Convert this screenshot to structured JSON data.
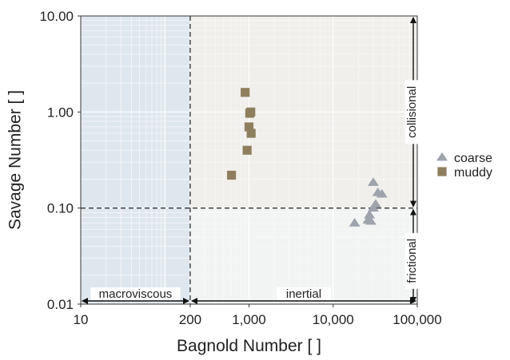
{
  "chart_data": {
    "type": "scatter",
    "xlabel": "Bagnold Number [ ]",
    "ylabel": "Savage Number [ ]",
    "x_scale": "log",
    "y_scale": "log",
    "xlim": [
      10,
      100000
    ],
    "ylim": [
      0.01,
      10
    ],
    "x_ticks": [
      {
        "value": 10,
        "label": "10"
      },
      {
        "value": 200,
        "label": "200"
      },
      {
        "value": 1000,
        "label": "1,000"
      },
      {
        "value": 10000,
        "label": "10,000"
      },
      {
        "value": 100000,
        "label": "100,000"
      }
    ],
    "y_ticks": [
      {
        "value": 0.01,
        "label": "0.01"
      },
      {
        "value": 0.1,
        "label": "0.10"
      },
      {
        "value": 1,
        "label": "1.00"
      },
      {
        "value": 10,
        "label": "10.00"
      }
    ],
    "grid": true,
    "legend_position": "right",
    "thresholds": {
      "bagnold": 200,
      "savage": 0.1
    },
    "regions": [
      {
        "name": "macroviscous",
        "x_range": [
          10,
          200
        ],
        "y_range": [
          0.01,
          10
        ],
        "color": "#dfe7ee"
      },
      {
        "name": "collisional-inertial",
        "x_range": [
          200,
          100000
        ],
        "y_range": [
          0.1,
          10
        ],
        "color": "#f1efeb"
      },
      {
        "name": "frictional-inertial",
        "x_range": [
          200,
          100000
        ],
        "y_range": [
          0.01,
          0.1
        ],
        "color": "#f2f4f4"
      }
    ],
    "region_labels": {
      "macroviscous": "macroviscous",
      "inertial": "inertial",
      "collisional": "collisional",
      "frictional": "frictional"
    },
    "series": [
      {
        "name": "coarse",
        "marker": "triangle",
        "color": "#9ea3ac",
        "points": [
          {
            "x": 18000,
            "y": 0.07
          },
          {
            "x": 26000,
            "y": 0.075
          },
          {
            "x": 28000,
            "y": 0.073
          },
          {
            "x": 27000,
            "y": 0.085
          },
          {
            "x": 30000,
            "y": 0.1
          },
          {
            "x": 32000,
            "y": 0.11
          },
          {
            "x": 30000,
            "y": 0.185
          },
          {
            "x": 34000,
            "y": 0.145
          },
          {
            "x": 38000,
            "y": 0.14
          }
        ]
      },
      {
        "name": "muddy",
        "marker": "square",
        "color": "#8f7e5e",
        "points": [
          {
            "x": 620,
            "y": 0.22
          },
          {
            "x": 900,
            "y": 1.6
          },
          {
            "x": 950,
            "y": 0.4
          },
          {
            "x": 1000,
            "y": 0.7
          },
          {
            "x": 1020,
            "y": 0.97
          },
          {
            "x": 1050,
            "y": 1.0
          },
          {
            "x": 1060,
            "y": 0.6
          }
        ]
      }
    ]
  }
}
